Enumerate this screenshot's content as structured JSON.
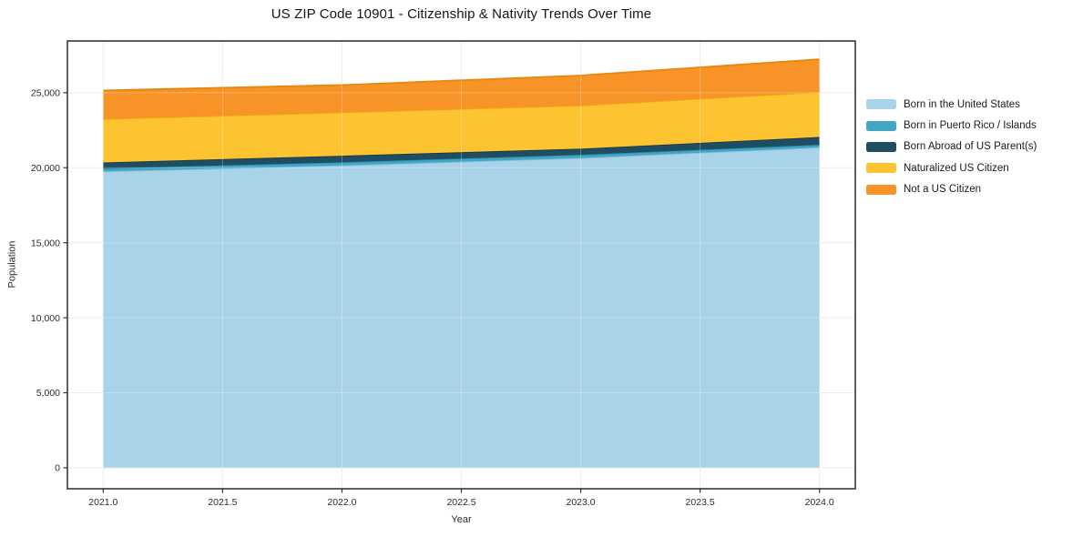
{
  "title": "US ZIP Code 10901 - Citizenship & Nativity Trends Over Time",
  "chart_data": {
    "type": "area",
    "stacked": true,
    "title": "US ZIP Code 10901 - Citizenship & Nativity Trends Over Time",
    "xlabel": "Year",
    "ylabel": "Population",
    "x": [
      2021,
      2022,
      2023,
      2024
    ],
    "series": [
      {
        "name": "Born in the United States",
        "values": [
          19750,
          20150,
          20650,
          21350
        ],
        "color": "#a8d3e8",
        "line_color": "#8cc1da"
      },
      {
        "name": "Born in Puerto Rico / Islands",
        "values": [
          200,
          210,
          210,
          180
        ],
        "color": "#41a7c4",
        "line_color": "#2f93b0"
      },
      {
        "name": "Born Abroad of US Parent(s)",
        "values": [
          400,
          440,
          410,
          520
        ],
        "color": "#1f4e63",
        "line_color": "#153a4b"
      },
      {
        "name": "Naturalized US Citizen",
        "values": [
          2900,
          2890,
          2880,
          2990
        ],
        "color": "#fdc330",
        "line_color": "#edab13"
      },
      {
        "name": "Not a US Citizen",
        "values": [
          1900,
          1820,
          2000,
          2190
        ],
        "color": "#f79327",
        "line_color": "#e8860f"
      }
    ],
    "stack_totals": [
      25150,
      25510,
      26150,
      27230
    ],
    "xticks": {
      "values": [
        2021.0,
        2021.5,
        2022.0,
        2022.5,
        2023.0,
        2023.5,
        2024.0
      ],
      "labels": [
        "2021.0",
        "2021.5",
        "2022.0",
        "2022.5",
        "2023.0",
        "2023.5",
        "2024.0"
      ]
    },
    "yticks": {
      "values": [
        0,
        5000,
        10000,
        15000,
        20000,
        25000
      ],
      "labels": [
        "0",
        "5,000",
        "10,000",
        "15,000",
        "20,000",
        "25,000"
      ]
    },
    "xlim": [
      2020.85,
      2024.15
    ],
    "ylim": [
      -1400,
      28450
    ],
    "grid": true,
    "legend_position": "right",
    "colors": {
      "grid": "#e8e8e8",
      "grid_over_fill": "rgba(255,255,255,0.28)",
      "axis_border": "#2b2b2b",
      "tick": "#333333",
      "tick_label": "#2b2b2b",
      "plot_background": "#ffffff"
    }
  }
}
